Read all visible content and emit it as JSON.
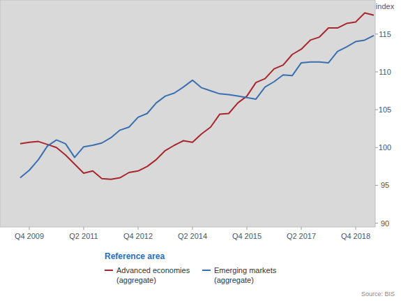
{
  "chart_data": {
    "type": "line",
    "y_label": "index",
    "legend_title": "Reference area",
    "source": "Source: BIS",
    "legend": "bottom",
    "categories": [
      null,
      "Q4 2009",
      null,
      null,
      null,
      null,
      null,
      "Q2 2011",
      null,
      null,
      null,
      null,
      null,
      "Q4 2012",
      null,
      null,
      null,
      null,
      null,
      "Q2 2014",
      null,
      null,
      null,
      null,
      null,
      "Q4 2015",
      null,
      null,
      null,
      null,
      null,
      "Q2 2017",
      null,
      null,
      null,
      null,
      null,
      "Q4 2018",
      null,
      null
    ],
    "series": [
      {
        "name": "Advanced economies (aggregate)",
        "color": "#a8262d",
        "values": [
          100.5,
          100.7,
          100.8,
          100.4,
          100.0,
          99.0,
          97.8,
          96.6,
          96.9,
          95.9,
          95.8,
          96.0,
          96.7,
          96.9,
          97.5,
          98.4,
          99.6,
          100.3,
          100.9,
          100.7,
          101.8,
          102.7,
          104.4,
          104.5,
          105.9,
          106.8,
          108.6,
          109.1,
          110.4,
          110.9,
          112.3,
          113.0,
          114.2,
          114.6,
          115.8,
          115.8,
          116.4,
          116.6,
          117.8,
          117.5
        ]
      },
      {
        "name": "Emerging markets (aggregate)",
        "color": "#3a6fb0",
        "values": [
          96.0,
          97.0,
          98.4,
          100.2,
          101.0,
          100.5,
          98.7,
          100.1,
          100.3,
          100.6,
          101.3,
          102.3,
          102.7,
          104.0,
          104.5,
          105.9,
          106.8,
          107.2,
          108.0,
          108.9,
          107.9,
          107.5,
          107.1,
          107.0,
          106.8,
          106.6,
          106.4,
          108.0,
          108.7,
          109.6,
          109.5,
          111.2,
          111.3,
          111.3,
          111.2,
          112.7,
          113.3,
          114.0,
          114.2,
          114.8
        ]
      }
    ],
    "ylim": [
      89.5,
      119.5
    ],
    "yticks": [
      90,
      95,
      100,
      105,
      110,
      115
    ],
    "grid": false
  }
}
